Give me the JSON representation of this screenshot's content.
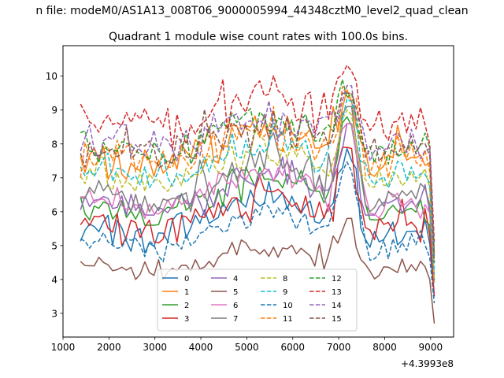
{
  "chart_data": {
    "type": "line",
    "suptitle": "n file: modeM0/AS1A13_008T06_9000005994_44348cztM0_level2_quad_clean",
    "title": "Quadrant 1 module wise count rates with 100.0s bins.",
    "xlabel": "",
    "ylabel": "",
    "x_offset_label": "+4.3993e8",
    "xlim": [
      1000,
      9500
    ],
    "ylim": [
      2.3,
      10.9
    ],
    "x_start": 1380,
    "x_end": 9080,
    "x_step": 100,
    "xticks": [
      1000,
      2000,
      3000,
      4000,
      5000,
      6000,
      7000,
      8000,
      9000
    ],
    "xtick_labels": [
      "1000",
      "2000",
      "3000",
      "4000",
      "5000",
      "6000",
      "7000",
      "8000",
      "9000"
    ],
    "yticks": [
      3,
      4,
      5,
      6,
      7,
      8,
      9,
      10
    ],
    "ytick_labels": [
      "3",
      "4",
      "5",
      "6",
      "7",
      "8",
      "9",
      "10"
    ],
    "grid": false,
    "legend_position": "lower-center",
    "series": [
      {
        "name": "0",
        "color": "#1f77b4",
        "dashed": false,
        "level": 5.5,
        "noise": 0.25,
        "end": 3.5,
        "pmin": 4.0,
        "pmax": 7.9
      },
      {
        "name": "1",
        "color": "#ff7f0e",
        "dashed": false,
        "level": 7.7,
        "noise": 0.3,
        "end": 4.8,
        "pmin": 6.8,
        "pmax": 9.6
      },
      {
        "name": "2",
        "color": "#2ca02c",
        "dashed": false,
        "level": 6.1,
        "noise": 0.25,
        "end": 4.0,
        "pmin": 5.6,
        "pmax": 8.8
      },
      {
        "name": "3",
        "color": "#d62728",
        "dashed": false,
        "level": 5.7,
        "noise": 0.3,
        "end": 3.5,
        "pmin": 5.0,
        "pmax": 7.9
      },
      {
        "name": "4",
        "color": "#9467bd",
        "dashed": false,
        "level": 6.3,
        "noise": 0.25,
        "end": 3.9,
        "pmin": 5.9,
        "pmax": 8.6
      },
      {
        "name": "5",
        "color": "#8c564b",
        "dashed": false,
        "level": 4.4,
        "noise": 0.22,
        "end": 2.7,
        "pmin": 4.0,
        "pmax": 5.8
      },
      {
        "name": "6",
        "color": "#e377c2",
        "dashed": false,
        "level": 6.3,
        "noise": 0.25,
        "end": 4.1,
        "pmin": 5.8,
        "pmax": 8.6
      },
      {
        "name": "7",
        "color": "#7f7f7f",
        "dashed": false,
        "level": 6.6,
        "noise": 0.3,
        "end": 4.0,
        "pmin": 6.0,
        "pmax": 9.1
      },
      {
        "name": "8",
        "color": "#bcbd22",
        "dashed": true,
        "level": 7.1,
        "noise": 0.28,
        "end": 3.9,
        "pmin": 6.6,
        "pmax": 9.0
      },
      {
        "name": "9",
        "color": "#17becf",
        "dashed": true,
        "level": 7.2,
        "noise": 0.28,
        "end": 4.2,
        "pmin": 6.7,
        "pmax": 9.5
      },
      {
        "name": "10",
        "color": "#1f77b4",
        "dashed": true,
        "level": 5.2,
        "noise": 0.22,
        "end": 3.3,
        "pmin": 4.5,
        "pmax": 7.5
      },
      {
        "name": "11",
        "color": "#ff7f0e",
        "dashed": true,
        "level": 7.7,
        "noise": 0.3,
        "end": 4.7,
        "pmin": 7.0,
        "pmax": 9.7
      },
      {
        "name": "12",
        "color": "#2ca02c",
        "dashed": true,
        "level": 8.0,
        "noise": 0.3,
        "end": 4.5,
        "pmin": 7.4,
        "pmax": 9.9
      },
      {
        "name": "13",
        "color": "#d62728",
        "dashed": true,
        "level": 8.7,
        "noise": 0.35,
        "end": 5.1,
        "pmin": 7.8,
        "pmax": 10.45
      },
      {
        "name": "14",
        "color": "#9467bd",
        "dashed": true,
        "level": 8.2,
        "noise": 0.3,
        "end": 4.7,
        "pmin": 7.5,
        "pmax": 9.8
      },
      {
        "name": "15",
        "color": "#8c564b",
        "dashed": true,
        "level": 7.9,
        "noise": 0.3,
        "end": 4.5,
        "pmin": 7.3,
        "pmax": 9.5
      }
    ]
  }
}
